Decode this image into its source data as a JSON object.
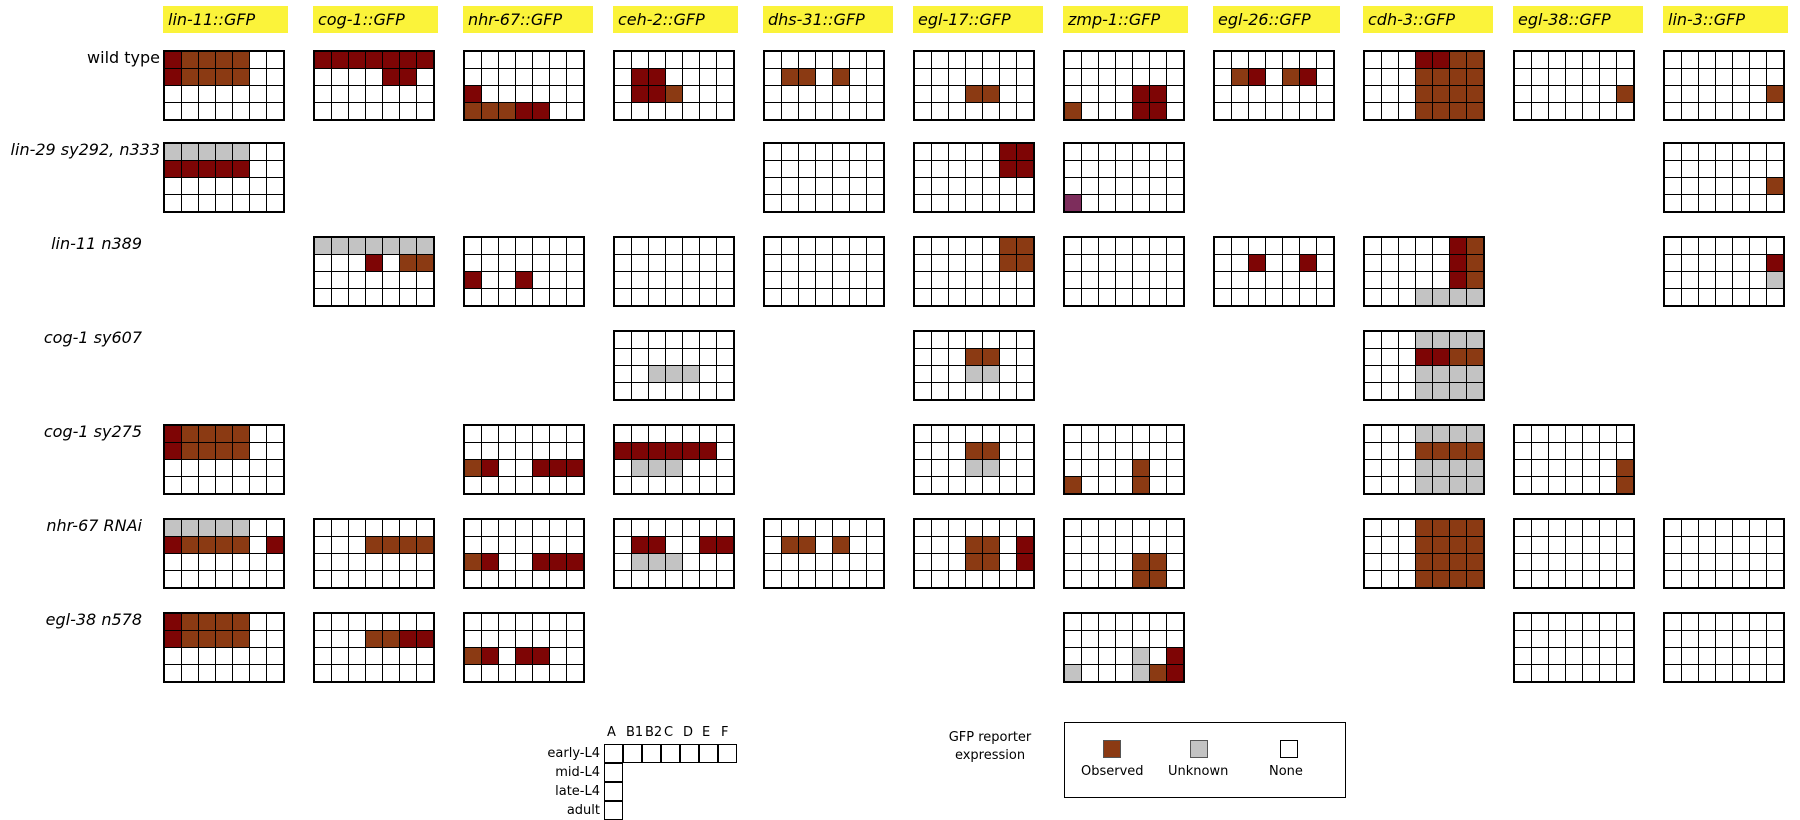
{
  "reporters": [
    "lin-11::GFP",
    "cog-1::GFP",
    "nhr-67::GFP",
    "ceh-2::GFP",
    "dhs-31::GFP",
    "egl-17::GFP",
    "zmp-1::GFP",
    "egl-26::GFP",
    "cdh-3::GFP",
    "egl-38::GFP",
    "lin-3::GFP"
  ],
  "genotypes": [
    {
      "label": "wild type",
      "italic": false
    },
    {
      "label": "lin-29 sy292, n333",
      "italic": true
    },
    {
      "label": "lin-11 n389",
      "italic": true
    },
    {
      "label": "cog-1 sy607",
      "italic": true
    },
    {
      "label": "cog-1 sy275",
      "italic": true
    },
    {
      "label": "nhr-67 RNAi",
      "italic": true
    },
    {
      "label": "egl-38 n578",
      "italic": true
    }
  ],
  "key": {
    "columns": [
      "A",
      "B1",
      "B2",
      "C",
      "D",
      "E",
      "F"
    ],
    "stages": [
      "early-L4",
      "mid-L4",
      "late-L4",
      "adult"
    ]
  },
  "legend": {
    "title_line1": "GFP reporter",
    "title_line2": "expression",
    "items": [
      {
        "label": "Observed",
        "color": "#8b3a13"
      },
      {
        "label": "Unknown",
        "color": "#c3c3c3"
      },
      {
        "label": "None",
        "color": "#ffffff"
      }
    ]
  },
  "colors": {
    "observed": "#8b3a13",
    "observed_dark": "#7e0505",
    "unknown": "#c3c3c3",
    "none": "#ffffff",
    "purple": "#7d2d5c",
    "label_bg": "#fbf33a"
  },
  "state_codes": {
    "0": "none",
    "1": "observed",
    "2": "unknown",
    "3": "observed (dark)",
    "4": "observed (purple)"
  },
  "panels": [
    {
      "g": 0,
      "r": 0,
      "cells": [
        "3111100",
        "3111100",
        "0000000",
        "0000000"
      ]
    },
    {
      "g": 0,
      "r": 1,
      "cells": [
        "3333333",
        "0000330",
        "0000000",
        "0000000"
      ]
    },
    {
      "g": 0,
      "r": 2,
      "cells": [
        "0000000",
        "0000000",
        "3000000",
        "1113300"
      ]
    },
    {
      "g": 0,
      "r": 3,
      "cells": [
        "0000000",
        "0330000",
        "0331000",
        "0000000"
      ]
    },
    {
      "g": 0,
      "r": 4,
      "cells": [
        "0000000",
        "0110100",
        "0000000",
        "0000000"
      ]
    },
    {
      "g": 0,
      "r": 5,
      "cells": [
        "0000000",
        "0000000",
        "0001100",
        "0000000"
      ]
    },
    {
      "g": 0,
      "r": 6,
      "cells": [
        "0000000",
        "0000000",
        "0000330",
        "1000330"
      ]
    },
    {
      "g": 0,
      "r": 7,
      "cells": [
        "0000000",
        "0130130",
        "0000000",
        "0000000"
      ]
    },
    {
      "g": 0,
      "r": 8,
      "cells": [
        "0003311",
        "0001111",
        "0001111",
        "0001111"
      ]
    },
    {
      "g": 0,
      "r": 9,
      "cells": [
        "0000000",
        "0000000",
        "0000001",
        "0000000"
      ]
    },
    {
      "g": 0,
      "r": 10,
      "cells": [
        "0000000",
        "0000000",
        "0000001",
        "0000000"
      ]
    },
    {
      "g": 1,
      "r": 0,
      "cells": [
        "2222200",
        "3333300",
        "0000000",
        "0000000"
      ]
    },
    {
      "g": 1,
      "r": 4,
      "cells": [
        "0000000",
        "0000000",
        "0000000",
        "0000000"
      ]
    },
    {
      "g": 1,
      "r": 5,
      "cells": [
        "0000033",
        "0000033",
        "0000000",
        "0000000"
      ]
    },
    {
      "g": 1,
      "r": 6,
      "cells": [
        "0000000",
        "0000000",
        "0000000",
        "4000000"
      ]
    },
    {
      "g": 1,
      "r": 10,
      "cells": [
        "0000000",
        "0000000",
        "0000001",
        "0000000"
      ]
    },
    {
      "g": 2,
      "r": 1,
      "cells": [
        "2222222",
        "0003011",
        "0000000",
        "0000000"
      ]
    },
    {
      "g": 2,
      "r": 2,
      "cells": [
        "0000000",
        "0000000",
        "3003000",
        "0000000"
      ]
    },
    {
      "g": 2,
      "r": 3,
      "cells": [
        "0000000",
        "0000000",
        "0000000",
        "0000000"
      ]
    },
    {
      "g": 2,
      "r": 4,
      "cells": [
        "0000000",
        "0000000",
        "0000000",
        "0000000"
      ]
    },
    {
      "g": 2,
      "r": 5,
      "cells": [
        "0000011",
        "0000011",
        "0000000",
        "0000000"
      ]
    },
    {
      "g": 2,
      "r": 6,
      "cells": [
        "0000000",
        "0000000",
        "0000000",
        "0000000"
      ]
    },
    {
      "g": 2,
      "r": 7,
      "cells": [
        "0000000",
        "0030030",
        "0000000",
        "0000000"
      ]
    },
    {
      "g": 2,
      "r": 8,
      "cells": [
        "0000031",
        "0000031",
        "0000031",
        "0002222"
      ]
    },
    {
      "g": 2,
      "r": 10,
      "cells": [
        "0000000",
        "0000003",
        "0000002",
        "0000000"
      ]
    },
    {
      "g": 3,
      "r": 3,
      "cells": [
        "0000000",
        "0000000",
        "0022200",
        "0000000"
      ]
    },
    {
      "g": 3,
      "r": 5,
      "cells": [
        "0000000",
        "0001100",
        "0002200",
        "0000000"
      ]
    },
    {
      "g": 3,
      "r": 8,
      "cells": [
        "0002222",
        "0003311",
        "0002222",
        "0002222"
      ]
    },
    {
      "g": 4,
      "r": 0,
      "cells": [
        "3111100",
        "3111100",
        "0000000",
        "0000000"
      ]
    },
    {
      "g": 4,
      "r": 2,
      "cells": [
        "0000000",
        "0000000",
        "1300333",
        "0000000"
      ]
    },
    {
      "g": 4,
      "r": 3,
      "cells": [
        "0000000",
        "3333330",
        "0222000",
        "0000000"
      ]
    },
    {
      "g": 4,
      "r": 5,
      "cells": [
        "0000000",
        "0001100",
        "0002200",
        "0000000"
      ]
    },
    {
      "g": 4,
      "r": 6,
      "cells": [
        "0000000",
        "0000000",
        "0000100",
        "1000100"
      ]
    },
    {
      "g": 4,
      "r": 8,
      "cells": [
        "0002222",
        "0001111",
        "0002222",
        "0002222"
      ]
    },
    {
      "g": 4,
      "r": 9,
      "cells": [
        "0000000",
        "0000000",
        "0000001",
        "0000001"
      ]
    },
    {
      "g": 5,
      "r": 0,
      "cells": [
        "2222200",
        "3111103",
        "0000000",
        "0000000"
      ]
    },
    {
      "g": 5,
      "r": 1,
      "cells": [
        "0000000",
        "0001111",
        "0000000",
        "0000000"
      ]
    },
    {
      "g": 5,
      "r": 2,
      "cells": [
        "0000000",
        "0000000",
        "1300333",
        "0000000"
      ]
    },
    {
      "g": 5,
      "r": 3,
      "cells": [
        "0000000",
        "0330033",
        "0222000",
        "0000000"
      ]
    },
    {
      "g": 5,
      "r": 4,
      "cells": [
        "0000000",
        "0110100",
        "0000000",
        "0000000"
      ]
    },
    {
      "g": 5,
      "r": 5,
      "cells": [
        "0000000",
        "0001103",
        "0001103",
        "0000000"
      ]
    },
    {
      "g": 5,
      "r": 6,
      "cells": [
        "0000000",
        "0000000",
        "0000110",
        "0000110"
      ]
    },
    {
      "g": 5,
      "r": 8,
      "cells": [
        "0001111",
        "0001111",
        "0001111",
        "0001111"
      ]
    },
    {
      "g": 5,
      "r": 9,
      "cells": [
        "0000000",
        "0000000",
        "0000000",
        "0000000"
      ]
    },
    {
      "g": 5,
      "r": 10,
      "cells": [
        "0000000",
        "0000000",
        "0000000",
        "0000000"
      ]
    },
    {
      "g": 6,
      "r": 0,
      "cells": [
        "3111100",
        "3111100",
        "0000000",
        "0000000"
      ]
    },
    {
      "g": 6,
      "r": 1,
      "cells": [
        "0000000",
        "0001133",
        "0000000",
        "0000000"
      ]
    },
    {
      "g": 6,
      "r": 2,
      "cells": [
        "0000000",
        "0000000",
        "1303300",
        "0000000"
      ]
    },
    {
      "g": 6,
      "r": 6,
      "cells": [
        "0000000",
        "0000000",
        "0000203",
        "2000213"
      ]
    },
    {
      "g": 6,
      "r": 9,
      "cells": [
        "0000000",
        "0000000",
        "0000000",
        "0000000"
      ]
    },
    {
      "g": 6,
      "r": 10,
      "cells": [
        "0000000",
        "0000000",
        "0000000",
        "0000000"
      ]
    }
  ]
}
